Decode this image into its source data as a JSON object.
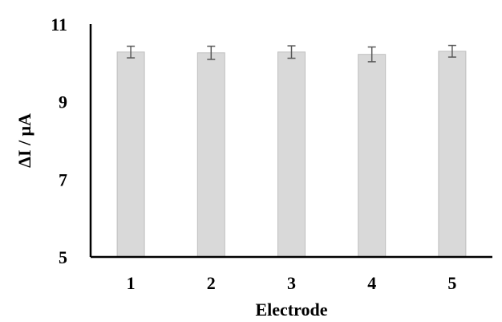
{
  "chart_data": {
    "type": "bar",
    "title": "",
    "xlabel": "Electrode",
    "ylabel": "ΔI / μA",
    "categories": [
      "1",
      "2",
      "3",
      "4",
      "5"
    ],
    "values": [
      10.28,
      10.26,
      10.28,
      10.22,
      10.3
    ],
    "error": [
      0.15,
      0.17,
      0.16,
      0.19,
      0.15
    ],
    "ylim": [
      5,
      11
    ],
    "yticks": [
      "5",
      "7",
      "9",
      "11"
    ],
    "grid": false,
    "legend": "none",
    "colors": {
      "bar_fill": "#d9d9d9",
      "bar_stroke": "#bfbfbf",
      "axis": "#000000",
      "error_bar": "#595959"
    }
  }
}
